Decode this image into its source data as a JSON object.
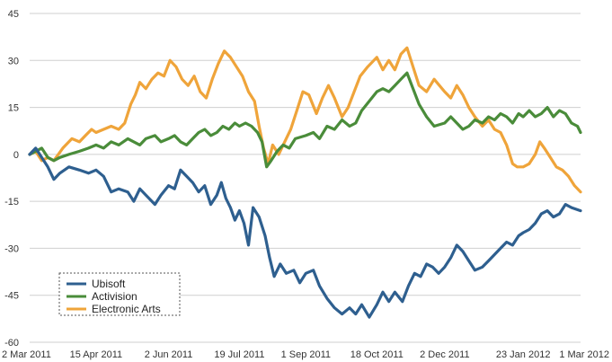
{
  "chart_data": {
    "type": "line",
    "title": "",
    "xlabel": "",
    "ylabel": "",
    "ylim": [
      -60,
      45
    ],
    "y_ticks": [
      45,
      30,
      15,
      0,
      -15,
      -30,
      -45,
      -60
    ],
    "x_range": [
      "2011-03-02",
      "2012-03-01"
    ],
    "x_ticks": [
      {
        "date": "2011-03-02",
        "label": "2 Mar 2011"
      },
      {
        "date": "2011-04-15",
        "label": "15 Apr 2011"
      },
      {
        "date": "2011-06-02",
        "label": "2 Jun 2011"
      },
      {
        "date": "2011-07-19",
        "label": "19 Jul 2011"
      },
      {
        "date": "2011-09-01",
        "label": "1 Sep 2011"
      },
      {
        "date": "2011-10-18",
        "label": "18 Oct 2011"
      },
      {
        "date": "2011-12-02",
        "label": "2 Dec 2011"
      },
      {
        "date": "2012-01-23",
        "label": "23 Jan 2012"
      },
      {
        "date": "2012-03-01",
        "label": "1 Mar 2012"
      }
    ],
    "grid": true,
    "legend_position": "bottom-left",
    "series": [
      {
        "name": "Ubisoft",
        "color": "#2e5f8f",
        "points": [
          [
            "2011-03-02",
            0
          ],
          [
            "2011-03-06",
            2
          ],
          [
            "2011-03-10",
            -1
          ],
          [
            "2011-03-14",
            -4
          ],
          [
            "2011-03-18",
            -8
          ],
          [
            "2011-03-22",
            -6
          ],
          [
            "2011-03-28",
            -4
          ],
          [
            "2011-04-04",
            -5
          ],
          [
            "2011-04-10",
            -6
          ],
          [
            "2011-04-15",
            -5
          ],
          [
            "2011-04-20",
            -7
          ],
          [
            "2011-04-25",
            -12
          ],
          [
            "2011-04-30",
            -11
          ],
          [
            "2011-05-06",
            -12
          ],
          [
            "2011-05-10",
            -15
          ],
          [
            "2011-05-14",
            -11
          ],
          [
            "2011-05-18",
            -13
          ],
          [
            "2011-05-24",
            -16
          ],
          [
            "2011-05-28",
            -13
          ],
          [
            "2011-06-02",
            -10
          ],
          [
            "2011-06-06",
            -11
          ],
          [
            "2011-06-10",
            -5
          ],
          [
            "2011-06-14",
            -7
          ],
          [
            "2011-06-18",
            -9
          ],
          [
            "2011-06-22",
            -12
          ],
          [
            "2011-06-26",
            -10
          ],
          [
            "2011-06-30",
            -16
          ],
          [
            "2011-07-04",
            -13
          ],
          [
            "2011-07-07",
            -9
          ],
          [
            "2011-07-10",
            -14
          ],
          [
            "2011-07-13",
            -17
          ],
          [
            "2011-07-16",
            -21
          ],
          [
            "2011-07-19",
            -18
          ],
          [
            "2011-07-22",
            -22
          ],
          [
            "2011-07-25",
            -29
          ],
          [
            "2011-07-28",
            -17
          ],
          [
            "2011-08-01",
            -20
          ],
          [
            "2011-08-05",
            -26
          ],
          [
            "2011-08-08",
            -33
          ],
          [
            "2011-08-11",
            -39
          ],
          [
            "2011-08-15",
            -35
          ],
          [
            "2011-08-19",
            -38
          ],
          [
            "2011-08-24",
            -37
          ],
          [
            "2011-08-28",
            -41
          ],
          [
            "2011-09-01",
            -38
          ],
          [
            "2011-09-06",
            -37
          ],
          [
            "2011-09-10",
            -42
          ],
          [
            "2011-09-15",
            -46
          ],
          [
            "2011-09-20",
            -49
          ],
          [
            "2011-09-25",
            -51
          ],
          [
            "2011-09-30",
            -49
          ],
          [
            "2011-10-04",
            -51
          ],
          [
            "2011-10-08",
            -48
          ],
          [
            "2011-10-13",
            -52
          ],
          [
            "2011-10-18",
            -48
          ],
          [
            "2011-10-22",
            -44
          ],
          [
            "2011-10-26",
            -47
          ],
          [
            "2011-10-30",
            -44
          ],
          [
            "2011-11-04",
            -47
          ],
          [
            "2011-11-08",
            -42
          ],
          [
            "2011-11-12",
            -38
          ],
          [
            "2011-11-16",
            -39
          ],
          [
            "2011-11-20",
            -35
          ],
          [
            "2011-11-24",
            -36
          ],
          [
            "2011-11-28",
            -38
          ],
          [
            "2011-12-02",
            -36
          ],
          [
            "2011-12-06",
            -33
          ],
          [
            "2011-12-10",
            -29
          ],
          [
            "2011-12-14",
            -31
          ],
          [
            "2011-12-18",
            -34
          ],
          [
            "2011-12-22",
            -37
          ],
          [
            "2011-12-27",
            -36
          ],
          [
            "2011-12-31",
            -34
          ],
          [
            "2012-01-04",
            -32
          ],
          [
            "2012-01-08",
            -30
          ],
          [
            "2012-01-12",
            -28
          ],
          [
            "2012-01-16",
            -29
          ],
          [
            "2012-01-20",
            -26
          ],
          [
            "2012-01-23",
            -25
          ],
          [
            "2012-01-27",
            -24
          ],
          [
            "2012-01-31",
            -22
          ],
          [
            "2012-02-04",
            -19
          ],
          [
            "2012-02-08",
            -18
          ],
          [
            "2012-02-12",
            -20
          ],
          [
            "2012-02-16",
            -19
          ],
          [
            "2012-02-20",
            -16
          ],
          [
            "2012-02-24",
            -17
          ],
          [
            "2012-03-01",
            -18
          ]
        ]
      },
      {
        "name": "Activision",
        "color": "#4a8c3a",
        "points": [
          [
            "2011-03-02",
            0
          ],
          [
            "2011-03-06",
            1
          ],
          [
            "2011-03-10",
            2
          ],
          [
            "2011-03-14",
            -1
          ],
          [
            "2011-03-18",
            -2
          ],
          [
            "2011-03-22",
            -1
          ],
          [
            "2011-03-28",
            0
          ],
          [
            "2011-04-04",
            1
          ],
          [
            "2011-04-10",
            2
          ],
          [
            "2011-04-15",
            3
          ],
          [
            "2011-04-20",
            2
          ],
          [
            "2011-04-25",
            4
          ],
          [
            "2011-04-30",
            3
          ],
          [
            "2011-05-06",
            5
          ],
          [
            "2011-05-10",
            4
          ],
          [
            "2011-05-14",
            3
          ],
          [
            "2011-05-18",
            5
          ],
          [
            "2011-05-24",
            6
          ],
          [
            "2011-05-28",
            4
          ],
          [
            "2011-06-02",
            5
          ],
          [
            "2011-06-06",
            6
          ],
          [
            "2011-06-10",
            4
          ],
          [
            "2011-06-14",
            3
          ],
          [
            "2011-06-18",
            5
          ],
          [
            "2011-06-22",
            7
          ],
          [
            "2011-06-26",
            8
          ],
          [
            "2011-06-30",
            6
          ],
          [
            "2011-07-04",
            7
          ],
          [
            "2011-07-08",
            9
          ],
          [
            "2011-07-12",
            8
          ],
          [
            "2011-07-16",
            10
          ],
          [
            "2011-07-19",
            9
          ],
          [
            "2011-07-23",
            10
          ],
          [
            "2011-07-27",
            9
          ],
          [
            "2011-07-31",
            7
          ],
          [
            "2011-08-03",
            4
          ],
          [
            "2011-08-06",
            -4
          ],
          [
            "2011-08-09",
            -2
          ],
          [
            "2011-08-13",
            1
          ],
          [
            "2011-08-17",
            3
          ],
          [
            "2011-08-21",
            2
          ],
          [
            "2011-08-25",
            5
          ],
          [
            "2011-09-01",
            6
          ],
          [
            "2011-09-06",
            7
          ],
          [
            "2011-09-10",
            5
          ],
          [
            "2011-09-15",
            9
          ],
          [
            "2011-09-20",
            8
          ],
          [
            "2011-09-25",
            11
          ],
          [
            "2011-09-30",
            9
          ],
          [
            "2011-10-04",
            10
          ],
          [
            "2011-10-08",
            14
          ],
          [
            "2011-10-13",
            17
          ],
          [
            "2011-10-18",
            20
          ],
          [
            "2011-10-22",
            21
          ],
          [
            "2011-10-26",
            20
          ],
          [
            "2011-10-30",
            22
          ],
          [
            "2011-11-03",
            24
          ],
          [
            "2011-11-07",
            26
          ],
          [
            "2011-11-11",
            21
          ],
          [
            "2011-11-15",
            16
          ],
          [
            "2011-11-20",
            12
          ],
          [
            "2011-11-25",
            9
          ],
          [
            "2011-12-02",
            10
          ],
          [
            "2011-12-06",
            12
          ],
          [
            "2011-12-10",
            10
          ],
          [
            "2011-12-14",
            8
          ],
          [
            "2011-12-18",
            9
          ],
          [
            "2011-12-22",
            11
          ],
          [
            "2011-12-27",
            10
          ],
          [
            "2011-12-31",
            12
          ],
          [
            "2012-01-04",
            11
          ],
          [
            "2012-01-08",
            13
          ],
          [
            "2012-01-12",
            12
          ],
          [
            "2012-01-16",
            10
          ],
          [
            "2012-01-20",
            13
          ],
          [
            "2012-01-23",
            12
          ],
          [
            "2012-01-27",
            14
          ],
          [
            "2012-01-31",
            12
          ],
          [
            "2012-02-04",
            13
          ],
          [
            "2012-02-08",
            15
          ],
          [
            "2012-02-12",
            12
          ],
          [
            "2012-02-16",
            14
          ],
          [
            "2012-02-20",
            13
          ],
          [
            "2012-02-24",
            10
          ],
          [
            "2012-02-28",
            9
          ],
          [
            "2012-03-01",
            7
          ]
        ]
      },
      {
        "name": "Electronic Arts",
        "color": "#efa43a",
        "points": [
          [
            "2011-03-02",
            0
          ],
          [
            "2011-03-06",
            1
          ],
          [
            "2011-03-10",
            -2
          ],
          [
            "2011-03-14",
            -1
          ],
          [
            "2011-03-18",
            -2
          ],
          [
            "2011-03-24",
            2
          ],
          [
            "2011-03-30",
            5
          ],
          [
            "2011-04-04",
            4
          ],
          [
            "2011-04-08",
            6
          ],
          [
            "2011-04-12",
            8
          ],
          [
            "2011-04-15",
            7
          ],
          [
            "2011-04-20",
            8
          ],
          [
            "2011-04-25",
            9
          ],
          [
            "2011-04-30",
            8
          ],
          [
            "2011-05-04",
            10
          ],
          [
            "2011-05-08",
            16
          ],
          [
            "2011-05-11",
            19
          ],
          [
            "2011-05-14",
            23
          ],
          [
            "2011-05-18",
            21
          ],
          [
            "2011-05-22",
            24
          ],
          [
            "2011-05-26",
            26
          ],
          [
            "2011-05-30",
            25
          ],
          [
            "2011-06-03",
            30
          ],
          [
            "2011-06-07",
            28
          ],
          [
            "2011-06-11",
            24
          ],
          [
            "2011-06-15",
            22
          ],
          [
            "2011-06-19",
            25
          ],
          [
            "2011-06-23",
            20
          ],
          [
            "2011-06-27",
            18
          ],
          [
            "2011-07-01",
            24
          ],
          [
            "2011-07-05",
            29
          ],
          [
            "2011-07-09",
            33
          ],
          [
            "2011-07-13",
            31
          ],
          [
            "2011-07-17",
            28
          ],
          [
            "2011-07-21",
            25
          ],
          [
            "2011-07-25",
            20
          ],
          [
            "2011-07-29",
            17
          ],
          [
            "2011-08-01",
            9
          ],
          [
            "2011-08-04",
            2
          ],
          [
            "2011-08-07",
            -3
          ],
          [
            "2011-08-10",
            3
          ],
          [
            "2011-08-14",
            0
          ],
          [
            "2011-08-18",
            4
          ],
          [
            "2011-08-22",
            8
          ],
          [
            "2011-08-26",
            14
          ],
          [
            "2011-08-30",
            20
          ],
          [
            "2011-09-03",
            19
          ],
          [
            "2011-09-08",
            13
          ],
          [
            "2011-09-12",
            18
          ],
          [
            "2011-09-16",
            22
          ],
          [
            "2011-09-20",
            18
          ],
          [
            "2011-09-25",
            12
          ],
          [
            "2011-09-29",
            15
          ],
          [
            "2011-10-03",
            20
          ],
          [
            "2011-10-07",
            25
          ],
          [
            "2011-10-12",
            28
          ],
          [
            "2011-10-18",
            31
          ],
          [
            "2011-10-22",
            27
          ],
          [
            "2011-10-26",
            30
          ],
          [
            "2011-10-30",
            27
          ],
          [
            "2011-11-03",
            32
          ],
          [
            "2011-11-07",
            34
          ],
          [
            "2011-11-11",
            28
          ],
          [
            "2011-11-15",
            22
          ],
          [
            "2011-11-20",
            20
          ],
          [
            "2011-11-25",
            24
          ],
          [
            "2011-12-02",
            20
          ],
          [
            "2011-12-06",
            18
          ],
          [
            "2011-12-10",
            22
          ],
          [
            "2011-12-14",
            19
          ],
          [
            "2011-12-18",
            15
          ],
          [
            "2011-12-22",
            12
          ],
          [
            "2011-12-27",
            9
          ],
          [
            "2011-12-31",
            11
          ],
          [
            "2012-01-04",
            8
          ],
          [
            "2012-01-08",
            7
          ],
          [
            "2012-01-12",
            3
          ],
          [
            "2012-01-16",
            -3
          ],
          [
            "2012-01-19",
            -4
          ],
          [
            "2012-01-23",
            -4
          ],
          [
            "2012-01-27",
            -3
          ],
          [
            "2012-01-31",
            0
          ],
          [
            "2012-02-03",
            4
          ],
          [
            "2012-02-06",
            2
          ],
          [
            "2012-02-10",
            -1
          ],
          [
            "2012-02-14",
            -4
          ],
          [
            "2012-02-18",
            -5
          ],
          [
            "2012-02-22",
            -7
          ],
          [
            "2012-02-26",
            -10
          ],
          [
            "2012-03-01",
            -12
          ]
        ]
      }
    ]
  }
}
